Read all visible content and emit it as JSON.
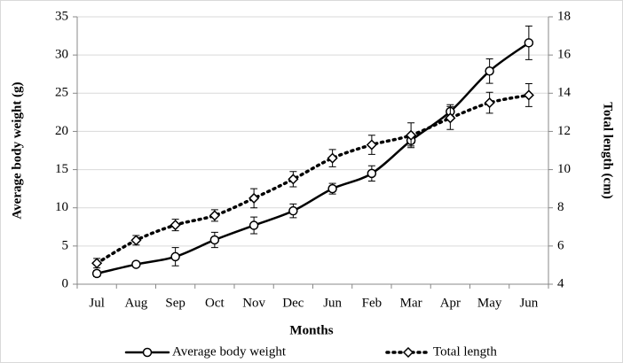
{
  "chart_data": {
    "type": "line",
    "x_label": "Months",
    "y_label": "Average body weight (g)",
    "y2_label": "Total length (cm)",
    "categories": [
      "Jul",
      "Aug",
      "Sep",
      "Oct",
      "Nov",
      "Dec",
      "Jun",
      "Feb",
      "Mar",
      "Apr",
      "May",
      "Jun"
    ],
    "ylim": [
      0,
      35
    ],
    "yticks": [
      0,
      5,
      10,
      15,
      20,
      25,
      30,
      35
    ],
    "y2lim": [
      4,
      18
    ],
    "y2ticks": [
      4,
      6,
      8,
      10,
      12,
      14,
      16,
      18
    ],
    "grid": true,
    "legend": "bottom",
    "series": [
      {
        "name": "Average body weight",
        "color": "#000000",
        "marker": "circle",
        "dash": "solid",
        "values": [
          1.4,
          2.6,
          3.6,
          5.8,
          7.7,
          9.6,
          12.5,
          14.5,
          18.8,
          22.6,
          27.9,
          31.6
        ],
        "errors": [
          0.4,
          0.2,
          1.2,
          1.0,
          1.1,
          0.9,
          0.7,
          1.0,
          0.7,
          0.9,
          1.6,
          2.2
        ]
      },
      {
        "name": "Total length",
        "color": "#000000",
        "marker": "diamond",
        "dash": "dotted",
        "axis": "y2",
        "values": [
          5.1,
          6.3,
          7.1,
          7.6,
          8.5,
          9.5,
          10.6,
          11.3,
          11.8,
          12.7,
          13.5,
          13.9
        ],
        "errors": [
          0.25,
          0.25,
          0.3,
          0.3,
          0.5,
          0.4,
          0.45,
          0.5,
          0.65,
          0.6,
          0.55,
          0.6
        ]
      }
    ]
  }
}
